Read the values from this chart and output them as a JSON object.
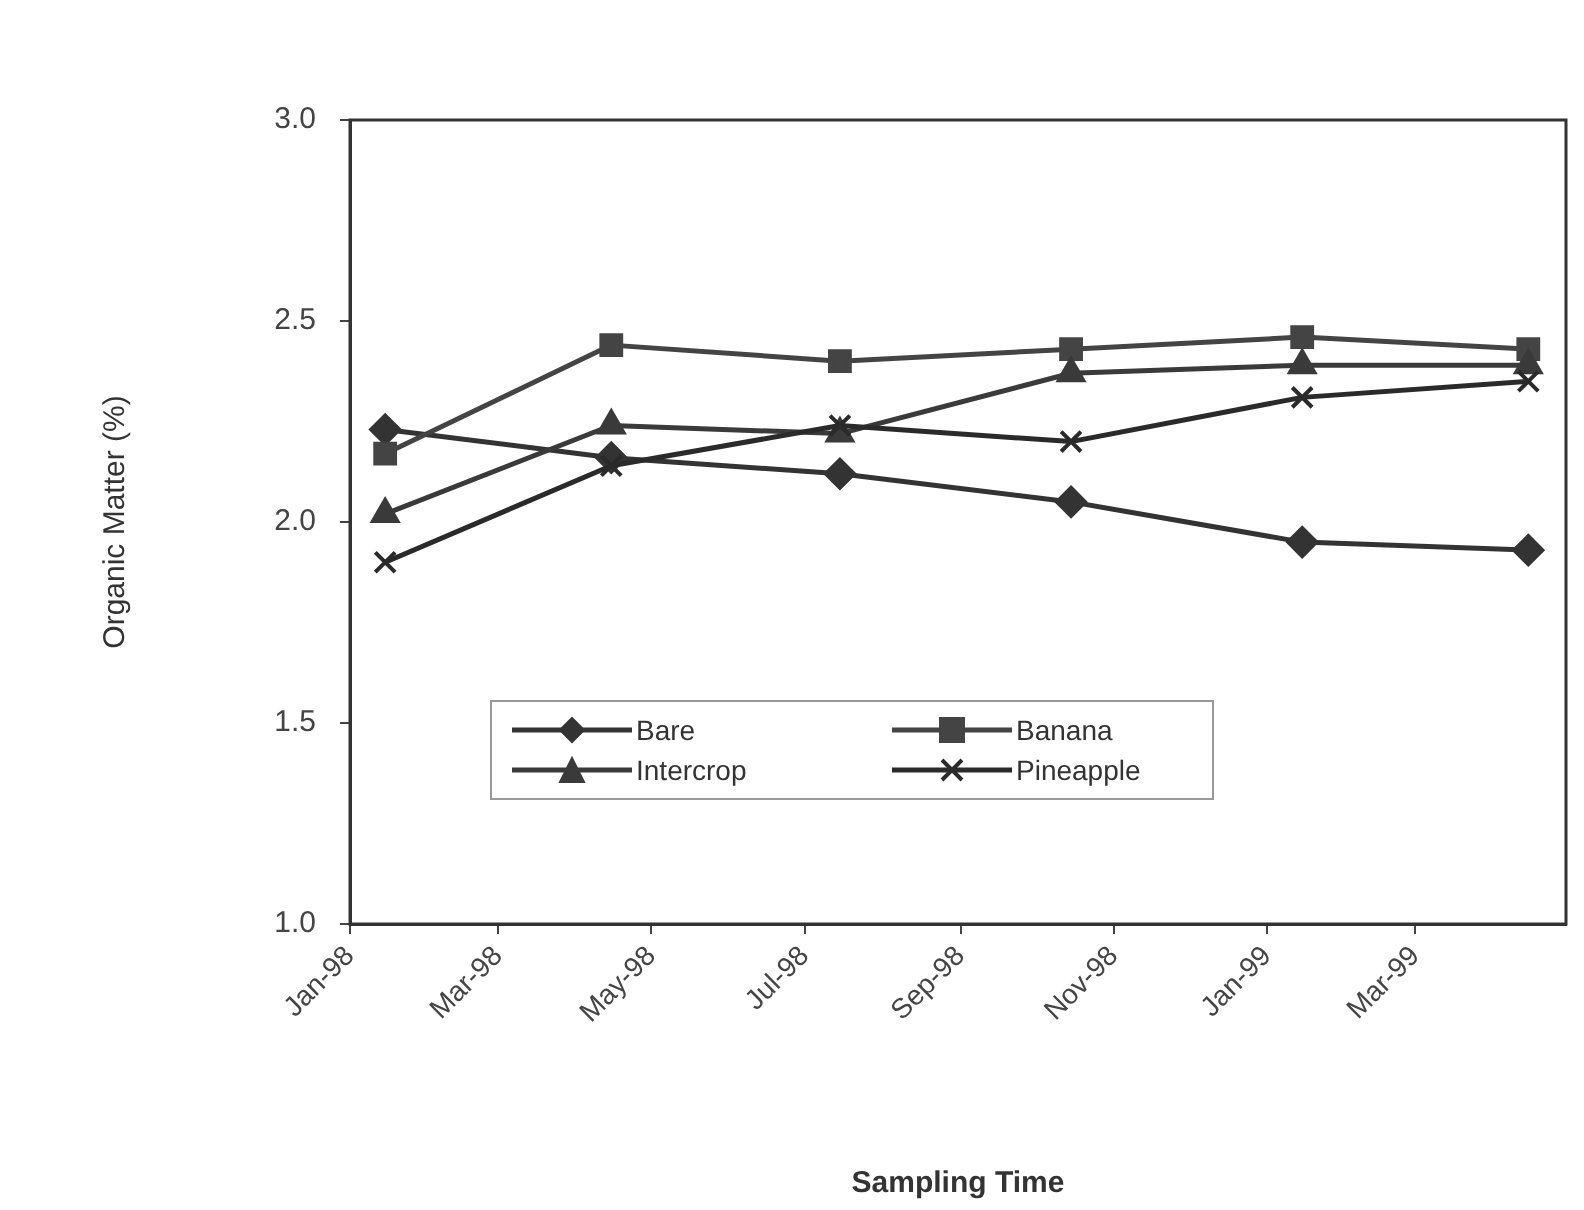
{
  "chart_data": {
    "type": "line",
    "xlabel": "Sampling Time",
    "ylabel": "Organic Matter (%)",
    "x": [
      "1998-01-15",
      "1998-04-15",
      "1998-07-15",
      "1998-10-15",
      "1999-01-15",
      "1999-04-15"
    ],
    "series": [
      {
        "name": "Bare",
        "color": "#333333",
        "marker": "diamond",
        "values": [
          2.23,
          2.16,
          2.12,
          2.05,
          1.95,
          1.93
        ]
      },
      {
        "name": "Banana",
        "color": "#444444",
        "marker": "square",
        "values": [
          2.17,
          2.44,
          2.4,
          2.43,
          2.46,
          2.43
        ]
      },
      {
        "name": "Intercrop",
        "color": "#3a3a3a",
        "marker": "triangle",
        "values": [
          2.02,
          2.24,
          2.22,
          2.37,
          2.39,
          2.39
        ]
      },
      {
        "name": "Pineapple",
        "color": "#2a2a2a",
        "marker": "cross",
        "values": [
          1.9,
          2.14,
          2.24,
          2.2,
          2.31,
          2.35
        ]
      }
    ],
    "xlim": [
      "1998-01-01",
      "1999-04-30"
    ],
    "xticks": [
      {
        "value": "1998-01-01",
        "label": "Jan-98"
      },
      {
        "value": "1998-03-01",
        "label": "Mar-98"
      },
      {
        "value": "1998-05-01",
        "label": "May-98"
      },
      {
        "value": "1998-07-01",
        "label": "Jul-98"
      },
      {
        "value": "1998-09-01",
        "label": "Sep-98"
      },
      {
        "value": "1998-11-01",
        "label": "Nov-98"
      },
      {
        "value": "1999-01-01",
        "label": "Jan-99"
      },
      {
        "value": "1999-03-01",
        "label": "Mar-99"
      }
    ],
    "ylim": [
      1,
      3
    ],
    "yticks": [
      {
        "value": 1,
        "label": "1.0"
      },
      {
        "value": 1.5,
        "label": "1.5"
      },
      {
        "value": 2,
        "label": "2.0"
      },
      {
        "value": 2.5,
        "label": "2.5"
      },
      {
        "value": 3,
        "label": "3.0"
      }
    ],
    "grid": false,
    "legend": "bottom",
    "line_style": "solid"
  }
}
